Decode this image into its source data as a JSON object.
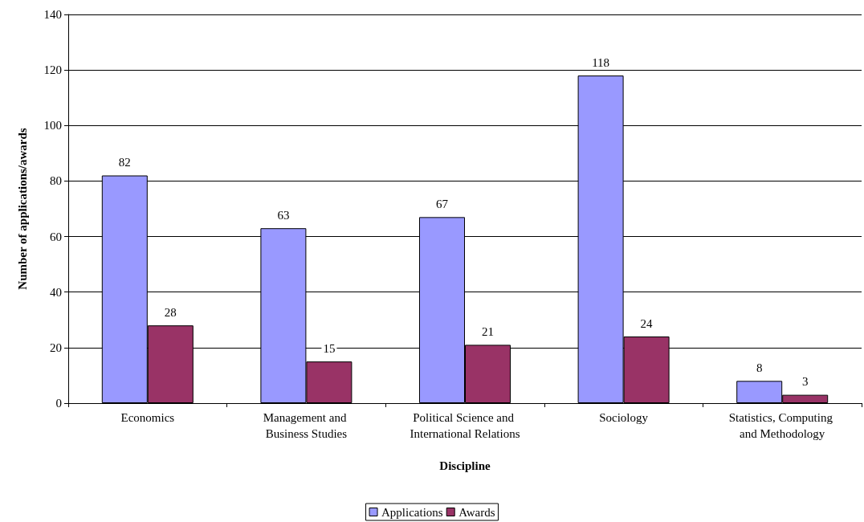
{
  "chart_data": {
    "type": "bar",
    "categories": [
      "Economics",
      "Management and Business Studies",
      "Political Science and International Relations",
      "Sociology",
      "Statistics, Computing and Methodology"
    ],
    "series": [
      {
        "name": "Applications",
        "color": "#9999ff",
        "values": [
          82,
          63,
          67,
          118,
          8
        ]
      },
      {
        "name": "Awards",
        "color": "#993366",
        "values": [
          28,
          15,
          21,
          24,
          3
        ]
      }
    ],
    "xlabel": "Discipline",
    "ylabel": "Number of applications/awards",
    "ylim": [
      0,
      140
    ],
    "yticks": [
      0,
      20,
      40,
      60,
      80,
      100,
      120,
      140
    ],
    "grid": "y",
    "legend": "bottom",
    "data_labels": true
  }
}
